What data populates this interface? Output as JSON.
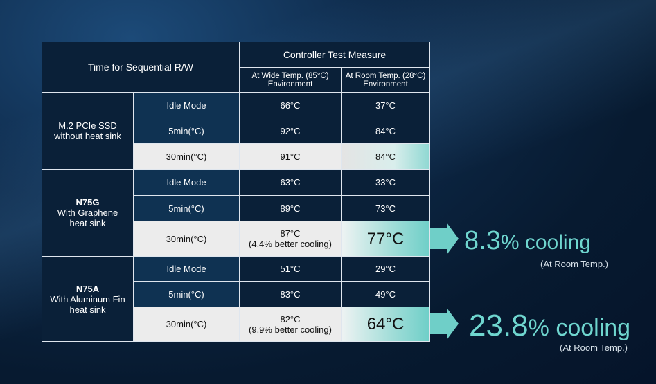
{
  "table": {
    "corner": "Time for Sequential R/W",
    "group_header": "Controller Test Measure",
    "columns": [
      [
        "At Wide Temp. (85°C)",
        "Environment"
      ],
      [
        "At Room Temp. (28°C)",
        "Environment"
      ]
    ],
    "groups": [
      {
        "name": [
          "M.2 PCIe SSD",
          "without heat sink"
        ],
        "rows": [
          {
            "mode": "Idle Mode",
            "wide": [
              "66°C"
            ],
            "room": "37°C"
          },
          {
            "mode": "5min(°C)",
            "wide": [
              "92°C"
            ],
            "room": "84°C"
          },
          {
            "mode": "30min(°C)",
            "wide": [
              "91°C"
            ],
            "room": "84°C"
          }
        ]
      },
      {
        "name": [
          "N75G",
          "With Graphene",
          "heat sink"
        ],
        "rows": [
          {
            "mode": "Idle Mode",
            "wide": [
              "63°C"
            ],
            "room": "33°C"
          },
          {
            "mode": "5min(°C)",
            "wide": [
              "89°C"
            ],
            "room": "73°C"
          },
          {
            "mode": "30min(°C)",
            "wide": [
              "87°C",
              "(4.4% better cooling)"
            ],
            "room": "77°C"
          }
        ]
      },
      {
        "name": [
          "N75A",
          "With Aluminum Fin",
          "heat sink"
        ],
        "rows": [
          {
            "mode": "Idle Mode",
            "wide": [
              "51°C"
            ],
            "room": "29°C"
          },
          {
            "mode": "5min(°C)",
            "wide": [
              "83°C"
            ],
            "room": "49°C"
          },
          {
            "mode": "30min(°C)",
            "wide": [
              "82°C",
              "(9.9% better cooling)"
            ],
            "room": "64°C"
          }
        ]
      }
    ]
  },
  "callouts": [
    {
      "value": "8.3",
      "unit": "% cooling",
      "note": "(At Room Temp.)"
    },
    {
      "value": "23.8",
      "unit": "% cooling",
      "note": "(At Room Temp.)"
    }
  ]
}
